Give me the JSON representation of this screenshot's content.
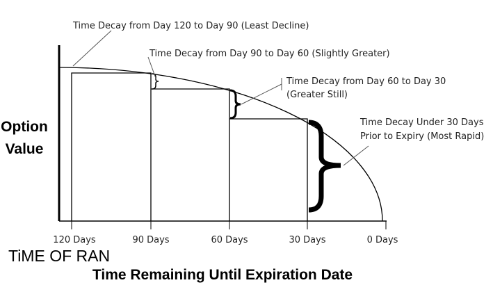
{
  "annotations": [
    {
      "lines": [
        "Time Decay from Day 120 to Day 90 (Least Decline)"
      ]
    },
    {
      "lines": [
        "Time Decay from Day 90 to Day 60 (Slightly Greater)"
      ]
    },
    {
      "lines": [
        "Time Decay from Day 60 to Day 30",
        "(Greater Still)"
      ]
    },
    {
      "lines": [
        "Time Decay Under 30 Days",
        "Prior to Expiry (Most Rapid)"
      ]
    }
  ],
  "y_axis_label": [
    "Option",
    "Value"
  ],
  "x_axis_label": "Time Remaining Until Expiration Date",
  "x_ticks": [
    "120 Days",
    "90 Days",
    "60 Days",
    "30 Days",
    "0 Days"
  ],
  "overlay_text": "TiME OF RAN"
}
